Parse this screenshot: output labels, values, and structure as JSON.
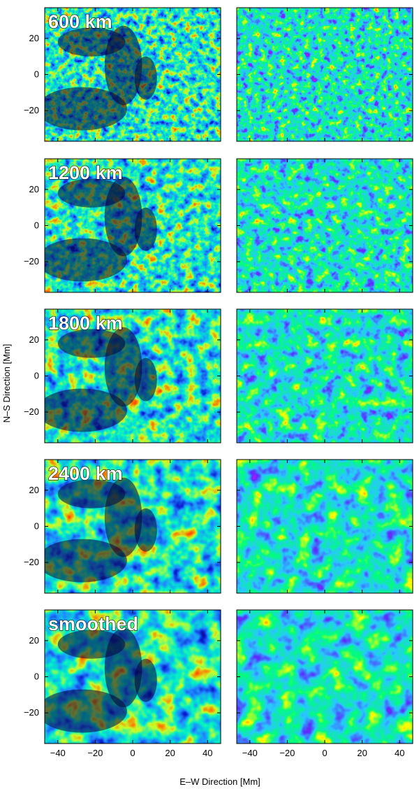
{
  "figure": {
    "xlabel": "E–W Direction   [Mm]",
    "ylabel": "N–S Direction   [Mm]",
    "x_ticks": [
      "−40",
      "−20",
      "0",
      "20",
      "40"
    ],
    "y_ticks": [
      "20",
      "0",
      "−20"
    ],
    "rows": [
      {
        "label": "600 km"
      },
      {
        "label": "1200 km"
      },
      {
        "label": "1800 km"
      },
      {
        "label": "2400 km"
      },
      {
        "label": "smoothed"
      }
    ]
  },
  "chart_data": {
    "type": "heatmap",
    "description_panels": 10,
    "x_range": [
      -47,
      47
    ],
    "y_range": [
      -37,
      37
    ],
    "x_tick_values": [
      -40,
      -20,
      0,
      20,
      40
    ],
    "y_tick_values": [
      20,
      0,
      -20
    ],
    "left_column_colormap": [
      "#05003a",
      "#0c1fd4",
      "#1e90ff",
      "#00f0c8",
      "#c8ff28",
      "#ff7800",
      "#ff0000"
    ],
    "right_column_colormap": [
      "#ff00ff",
      "#5a2cff",
      "#28c8ff",
      "#00ff7a",
      "#ffff00",
      "#ff2020"
    ]
  }
}
